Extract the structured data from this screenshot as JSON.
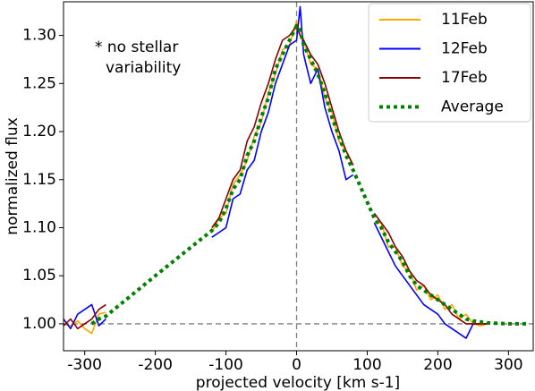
{
  "chart_data": {
    "type": "line",
    "xlabel": "projected velocity [km s-1]",
    "ylabel": "normalized flux",
    "annotations": [
      "* no stellar",
      "variability"
    ],
    "x": [
      -330,
      -320,
      -310,
      -300,
      -290,
      -280,
      -270,
      -200,
      -120,
      -110,
      -100,
      -90,
      -80,
      -70,
      -60,
      -50,
      -40,
      -30,
      -20,
      -10,
      0,
      5,
      10,
      20,
      30,
      40,
      50,
      60,
      70,
      80,
      95,
      110,
      120,
      130,
      140,
      150,
      160,
      170,
      180,
      190,
      200,
      210,
      220,
      230,
      240,
      250,
      260,
      270,
      300,
      330
    ],
    "series": [
      {
        "name": "11Feb",
        "color": "#ffa500",
        "style": "solid",
        "values": [
          1.0,
          0.998,
          1.003,
          0.995,
          0.99,
          1.01,
          1.012,
          null,
          1.095,
          1.11,
          1.115,
          1.145,
          1.155,
          1.17,
          1.195,
          1.21,
          1.24,
          1.26,
          1.285,
          1.29,
          1.315,
          1.3,
          1.295,
          1.27,
          1.265,
          1.235,
          1.22,
          1.19,
          1.18,
          1.165,
          null,
          1.105,
          1.105,
          1.08,
          1.08,
          1.06,
          1.055,
          1.035,
          1.04,
          1.025,
          1.03,
          1.015,
          1.02,
          1.005,
          1.01,
          1.0,
          0.998,
          1.0,
          null,
          null
        ]
      },
      {
        "name": "12Feb",
        "color": "#0000ff",
        "style": "solid",
        "values": [
          1.005,
          0.995,
          1.01,
          1.015,
          1.02,
          0.998,
          1.005,
          null,
          1.09,
          1.095,
          1.1,
          1.13,
          1.135,
          1.16,
          1.17,
          1.2,
          1.22,
          1.25,
          1.27,
          1.29,
          1.295,
          1.33,
          1.28,
          1.25,
          1.265,
          1.225,
          1.2,
          1.18,
          1.15,
          1.155,
          null,
          1.105,
          1.09,
          1.075,
          1.06,
          1.05,
          1.04,
          1.03,
          1.02,
          1.015,
          1.01,
          1.0,
          0.995,
          0.99,
          0.985,
          1.0,
          1.0,
          1.0,
          null,
          null
        ]
      },
      {
        "name": "17Feb",
        "color": "#8b0000",
        "style": "solid",
        "values": [
          0.998,
          1.005,
          0.995,
          1.0,
          1.005,
          1.015,
          1.02,
          null,
          1.1,
          1.11,
          1.13,
          1.15,
          1.16,
          1.19,
          1.205,
          1.23,
          1.25,
          1.275,
          1.295,
          1.3,
          1.31,
          1.3,
          1.295,
          1.28,
          1.27,
          1.25,
          1.225,
          1.2,
          1.18,
          1.165,
          null,
          1.115,
          1.105,
          1.095,
          1.08,
          1.07,
          1.055,
          1.045,
          1.04,
          1.03,
          1.025,
          1.02,
          1.01,
          1.005,
          1.0,
          1.0,
          1.0,
          1.0,
          null,
          null
        ]
      },
      {
        "name": "Average",
        "color": "#008000",
        "style": "dotted",
        "values": [
          null,
          null,
          null,
          null,
          1.0,
          1.005,
          1.008,
          1.05,
          1.097,
          1.105,
          1.12,
          1.14,
          1.15,
          1.175,
          1.19,
          1.215,
          1.235,
          1.265,
          1.28,
          1.295,
          1.31,
          1.305,
          1.29,
          1.275,
          1.26,
          1.24,
          1.215,
          1.195,
          1.175,
          1.16,
          1.135,
          1.11,
          1.1,
          1.085,
          1.075,
          1.065,
          1.05,
          1.04,
          1.035,
          1.03,
          1.025,
          1.02,
          1.015,
          1.01,
          1.005,
          1.003,
          1.002,
          1.001,
          1.0,
          1.0
        ]
      }
    ],
    "hlines": [
      1.0
    ],
    "vlines": [
      0
    ],
    "xlim": [
      -330,
      335
    ],
    "ylim": [
      0.972,
      1.335
    ],
    "xticks": [
      -300,
      -200,
      -100,
      0,
      100,
      200,
      300
    ],
    "yticks": [
      {
        "value": 1.0,
        "label": "1.00"
      },
      {
        "value": 1.05,
        "label": "1.05"
      },
      {
        "value": 1.1,
        "label": "1.10"
      },
      {
        "value": 1.15,
        "label": "1.15"
      },
      {
        "value": 1.2,
        "label": "1.20"
      },
      {
        "value": 1.25,
        "label": "1.25"
      },
      {
        "value": 1.3,
        "label": "1.30"
      }
    ],
    "legend": "upper right"
  }
}
